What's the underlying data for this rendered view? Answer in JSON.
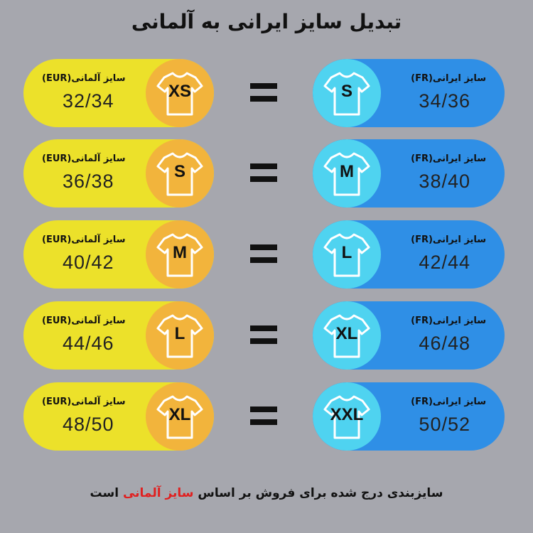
{
  "title": "تبدیل سایز ایرانی به آلمانی",
  "german_label": "سایز آلمانی(EUR)",
  "iranian_label": "سایز ایرانی(FR)",
  "colors": {
    "background": "#a6a7ae",
    "german_pill": "#ece12a",
    "german_circle": "#f2b43c",
    "iranian_pill": "#2f8fe6",
    "iranian_circle": "#4fd3f0",
    "highlight": "#e02020"
  },
  "rows": [
    {
      "german_size": "XS",
      "german_value": "32/34",
      "iranian_size": "S",
      "iranian_value": "34/36"
    },
    {
      "german_size": "S",
      "german_value": "36/38",
      "iranian_size": "M",
      "iranian_value": "38/40"
    },
    {
      "german_size": "M",
      "german_value": "40/42",
      "iranian_size": "L",
      "iranian_value": "42/44"
    },
    {
      "german_size": "L",
      "german_value": "44/46",
      "iranian_size": "XL",
      "iranian_value": "46/48"
    },
    {
      "german_size": "XL",
      "german_value": "48/50",
      "iranian_size": "XXL",
      "iranian_value": "50/52"
    }
  ],
  "footer": {
    "text_before": "سایزبندی درج شده برای فروش بر اساس ",
    "highlight": "سایز آلمانی",
    "text_after": " است"
  }
}
